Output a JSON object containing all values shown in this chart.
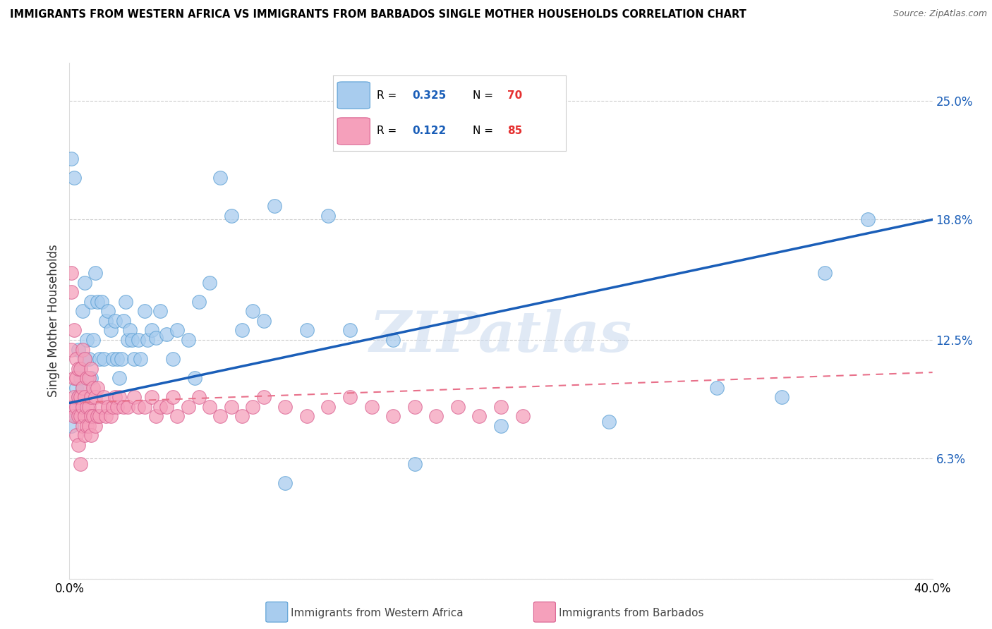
{
  "title": "IMMIGRANTS FROM WESTERN AFRICA VS IMMIGRANTS FROM BARBADOS SINGLE MOTHER HOUSEHOLDS CORRELATION CHART",
  "source": "Source: ZipAtlas.com",
  "ylabel": "Single Mother Households",
  "yticks": [
    0.0,
    0.063,
    0.125,
    0.188,
    0.25
  ],
  "ytick_labels": [
    "",
    "6.3%",
    "12.5%",
    "18.8%",
    "25.0%"
  ],
  "xlim": [
    0.0,
    0.4
  ],
  "ylim": [
    0.0,
    0.27
  ],
  "watermark": "ZIPatlas",
  "series1_color": "#a8ccee",
  "series1_edge": "#5a9fd4",
  "series2_color": "#f5a0bb",
  "series2_edge": "#d96090",
  "trendline1_color": "#1a5eb8",
  "trendline2_color": "#e8708a",
  "series1_label": "Immigrants from Western Africa",
  "series2_label": "Immigrants from Barbados",
  "series1_R": "0.325",
  "series1_N": "70",
  "series2_R": "0.122",
  "series2_N": "85",
  "legend_R_color": "#1a5eb8",
  "legend_N_color": "#e53030",
  "series1_x": [
    0.001,
    0.001,
    0.002,
    0.002,
    0.003,
    0.003,
    0.004,
    0.004,
    0.005,
    0.005,
    0.006,
    0.006,
    0.007,
    0.007,
    0.008,
    0.009,
    0.01,
    0.01,
    0.011,
    0.012,
    0.013,
    0.014,
    0.015,
    0.016,
    0.017,
    0.018,
    0.019,
    0.02,
    0.021,
    0.022,
    0.023,
    0.024,
    0.025,
    0.026,
    0.027,
    0.028,
    0.029,
    0.03,
    0.032,
    0.033,
    0.035,
    0.036,
    0.038,
    0.04,
    0.042,
    0.045,
    0.048,
    0.05,
    0.055,
    0.058,
    0.06,
    0.065,
    0.07,
    0.075,
    0.08,
    0.085,
    0.09,
    0.095,
    0.1,
    0.11,
    0.12,
    0.13,
    0.15,
    0.16,
    0.2,
    0.25,
    0.3,
    0.33,
    0.35,
    0.37
  ],
  "series1_y": [
    0.08,
    0.22,
    0.09,
    0.21,
    0.1,
    0.085,
    0.12,
    0.095,
    0.11,
    0.105,
    0.14,
    0.1,
    0.155,
    0.115,
    0.125,
    0.115,
    0.145,
    0.105,
    0.125,
    0.16,
    0.145,
    0.115,
    0.145,
    0.115,
    0.135,
    0.14,
    0.13,
    0.115,
    0.135,
    0.115,
    0.105,
    0.115,
    0.135,
    0.145,
    0.125,
    0.13,
    0.125,
    0.115,
    0.125,
    0.115,
    0.14,
    0.125,
    0.13,
    0.126,
    0.14,
    0.128,
    0.115,
    0.13,
    0.125,
    0.105,
    0.145,
    0.155,
    0.21,
    0.19,
    0.13,
    0.14,
    0.135,
    0.195,
    0.05,
    0.13,
    0.19,
    0.13,
    0.125,
    0.06,
    0.08,
    0.082,
    0.1,
    0.095,
    0.16,
    0.188
  ],
  "series2_x": [
    0.001,
    0.001,
    0.001,
    0.001,
    0.002,
    0.002,
    0.002,
    0.002,
    0.003,
    0.003,
    0.003,
    0.003,
    0.004,
    0.004,
    0.004,
    0.004,
    0.005,
    0.005,
    0.005,
    0.005,
    0.006,
    0.006,
    0.006,
    0.006,
    0.007,
    0.007,
    0.007,
    0.007,
    0.008,
    0.008,
    0.008,
    0.009,
    0.009,
    0.009,
    0.01,
    0.01,
    0.01,
    0.01,
    0.011,
    0.011,
    0.012,
    0.012,
    0.013,
    0.013,
    0.014,
    0.015,
    0.016,
    0.017,
    0.018,
    0.019,
    0.02,
    0.021,
    0.022,
    0.023,
    0.025,
    0.027,
    0.03,
    0.032,
    0.035,
    0.038,
    0.04,
    0.042,
    0.045,
    0.048,
    0.05,
    0.055,
    0.06,
    0.065,
    0.07,
    0.075,
    0.08,
    0.085,
    0.09,
    0.1,
    0.11,
    0.12,
    0.13,
    0.14,
    0.15,
    0.16,
    0.17,
    0.18,
    0.19,
    0.2,
    0.21
  ],
  "series2_y": [
    0.09,
    0.12,
    0.15,
    0.16,
    0.085,
    0.105,
    0.095,
    0.13,
    0.075,
    0.09,
    0.105,
    0.115,
    0.085,
    0.095,
    0.11,
    0.07,
    0.085,
    0.095,
    0.11,
    0.06,
    0.08,
    0.09,
    0.1,
    0.12,
    0.075,
    0.085,
    0.095,
    0.115,
    0.08,
    0.09,
    0.105,
    0.08,
    0.09,
    0.105,
    0.075,
    0.085,
    0.095,
    0.11,
    0.085,
    0.1,
    0.08,
    0.095,
    0.085,
    0.1,
    0.085,
    0.09,
    0.095,
    0.085,
    0.09,
    0.085,
    0.09,
    0.095,
    0.09,
    0.095,
    0.09,
    0.09,
    0.095,
    0.09,
    0.09,
    0.095,
    0.085,
    0.09,
    0.09,
    0.095,
    0.085,
    0.09,
    0.095,
    0.09,
    0.085,
    0.09,
    0.085,
    0.09,
    0.095,
    0.09,
    0.085,
    0.09,
    0.095,
    0.09,
    0.085,
    0.09,
    0.085,
    0.09,
    0.085,
    0.09,
    0.085
  ],
  "trendline1_x0": 0.0,
  "trendline1_y0": 0.092,
  "trendline1_x1": 0.4,
  "trendline1_y1": 0.188,
  "trendline2_x0": 0.0,
  "trendline2_y0": 0.092,
  "trendline2_x1": 0.4,
  "trendline2_y1": 0.108
}
